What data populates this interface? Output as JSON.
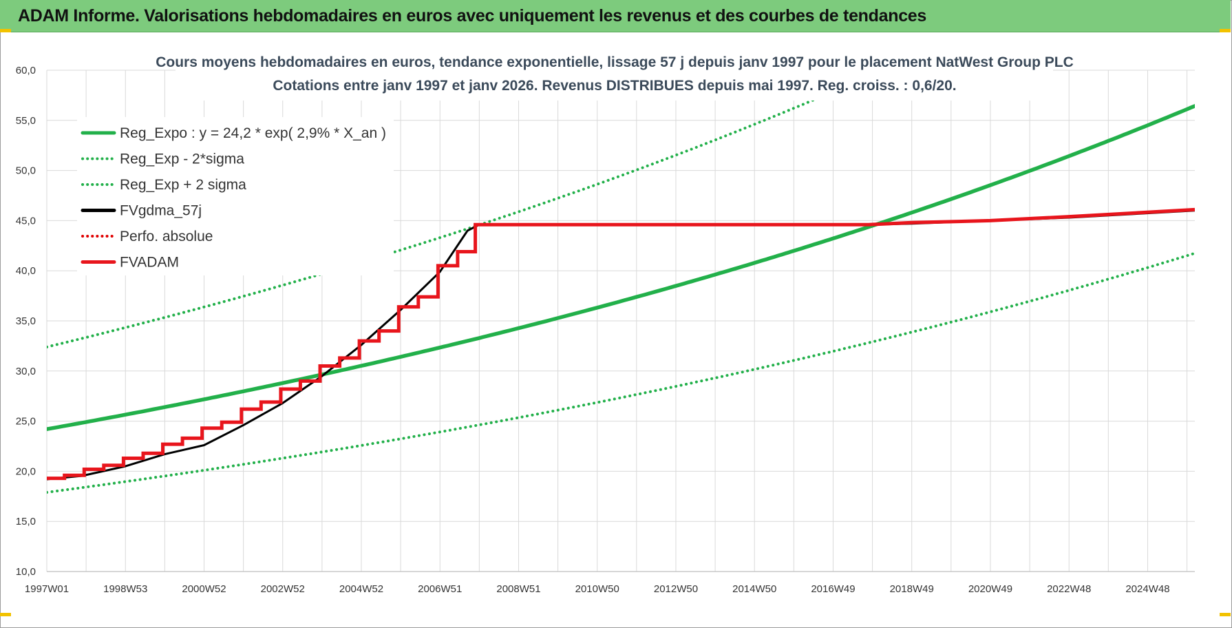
{
  "header": {
    "title": "ADAM Informe. Valorisations hebdomadaires en euros avec uniquement les revenus et des courbes de tendances"
  },
  "chart_data": {
    "type": "line",
    "title_lines": [
      "Cours moyens hebdomadaires en euros, tendance exponentielle, lissage 57 j depuis janv 1997 pour le placement NatWest Group PLC",
      "Cotations entre janv 1997 et janv 2026. Revenus DISTRIBUES depuis mai 1997. Reg. croiss. : 0,6/20."
    ],
    "x_tick_labels": [
      "1997W01",
      "1998W53",
      "2000W52",
      "2002W52",
      "2004W52",
      "2006W51",
      "2008W51",
      "2010W50",
      "2012W50",
      "2014W50",
      "2016W49",
      "2018W49",
      "2020W49",
      "2022W48",
      "2024W48"
    ],
    "x_range_years": [
      1997.0,
      2026.2
    ],
    "y_tick_labels": [
      "10,0",
      "15,0",
      "20,0",
      "25,0",
      "30,0",
      "35,0",
      "40,0",
      "45,0",
      "50,0",
      "55,0",
      "60,0"
    ],
    "ylim": [
      10,
      60
    ],
    "grid": true,
    "legend_position": "upper-left",
    "series": [
      {
        "name": "Reg_Expo : y = 24,2 * exp( 2,9% *  X_an )",
        "style": "solid",
        "color": "#22b04a",
        "model": {
          "a": 24.2,
          "rate": 0.029
        }
      },
      {
        "name": "Reg_Exp - 2*sigma",
        "style": "dotted",
        "color": "#22b04a",
        "model": {
          "a": 17.9,
          "rate": 0.029
        }
      },
      {
        "name": "Reg_Exp + 2 sigma",
        "style": "dotted",
        "color": "#22b04a",
        "model": {
          "a": 32.4,
          "rate": 0.029
        }
      },
      {
        "name": "FVgdma_57j",
        "style": "solid",
        "color": "#000000",
        "points": [
          [
            1997.0,
            19.2
          ],
          [
            1997.9,
            19.55
          ],
          [
            1999.0,
            20.5
          ],
          [
            2000.0,
            21.7
          ],
          [
            2001.0,
            22.6
          ],
          [
            2002.0,
            24.6
          ],
          [
            2003.0,
            26.8
          ],
          [
            2004.0,
            29.5
          ],
          [
            2005.0,
            32.6
          ],
          [
            2006.0,
            36.1
          ],
          [
            2007.0,
            39.9
          ],
          [
            2007.7,
            44.0
          ],
          [
            2008.0,
            44.6
          ],
          [
            2009.0,
            44.6
          ],
          [
            2018.0,
            44.6
          ],
          [
            2019.0,
            44.7
          ],
          [
            2021.0,
            45.0
          ],
          [
            2023.0,
            45.3
          ],
          [
            2026.2,
            46.0
          ]
        ]
      },
      {
        "name": "Perfo. absolue",
        "style": "dotted",
        "color": "#e00000",
        "points": []
      },
      {
        "name": "FVADAM",
        "style": "solid",
        "color": "#e8151c",
        "steps": [
          [
            1997.0,
            19.3
          ],
          [
            1997.45,
            19.6
          ],
          [
            1997.95,
            20.2
          ],
          [
            1998.45,
            20.6
          ],
          [
            1998.95,
            21.3
          ],
          [
            1999.45,
            21.8
          ],
          [
            1999.95,
            22.7
          ],
          [
            2000.45,
            23.3
          ],
          [
            2000.95,
            24.3
          ],
          [
            2001.45,
            24.9
          ],
          [
            2001.95,
            26.2
          ],
          [
            2002.45,
            26.9
          ],
          [
            2002.95,
            28.2
          ],
          [
            2003.45,
            29.0
          ],
          [
            2003.95,
            30.5
          ],
          [
            2004.45,
            31.3
          ],
          [
            2004.95,
            33.0
          ],
          [
            2005.45,
            34.0
          ],
          [
            2005.95,
            36.4
          ],
          [
            2006.45,
            37.4
          ],
          [
            2006.95,
            40.5
          ],
          [
            2007.45,
            41.9
          ],
          [
            2007.9,
            44.6
          ],
          [
            2017.9,
            44.6
          ]
        ],
        "tail": [
          [
            2017.9,
            44.6
          ],
          [
            2019.0,
            44.8
          ],
          [
            2021.0,
            45.0
          ],
          [
            2023.0,
            45.4
          ],
          [
            2026.2,
            46.1
          ]
        ]
      }
    ]
  }
}
